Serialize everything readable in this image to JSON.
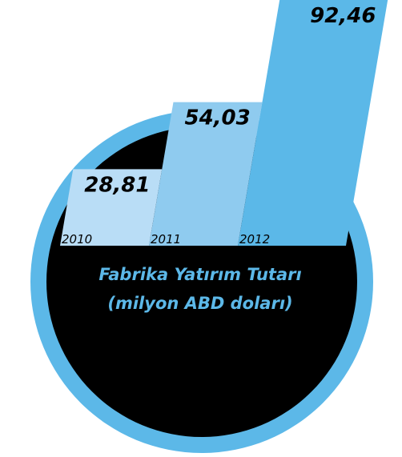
{
  "chart_data": {
    "type": "bar",
    "title": "Fabrika Yatırım Tutarı",
    "subtitle": "(milyon ABD doları)",
    "categories": [
      "2010",
      "2011",
      "2012"
    ],
    "values": [
      28.81,
      54.03,
      92.46
    ],
    "value_labels": [
      "28,81",
      "54,03",
      "92,46"
    ],
    "colors": [
      "#b9ddf6",
      "#8fcbef",
      "#5bb8e8"
    ]
  }
}
